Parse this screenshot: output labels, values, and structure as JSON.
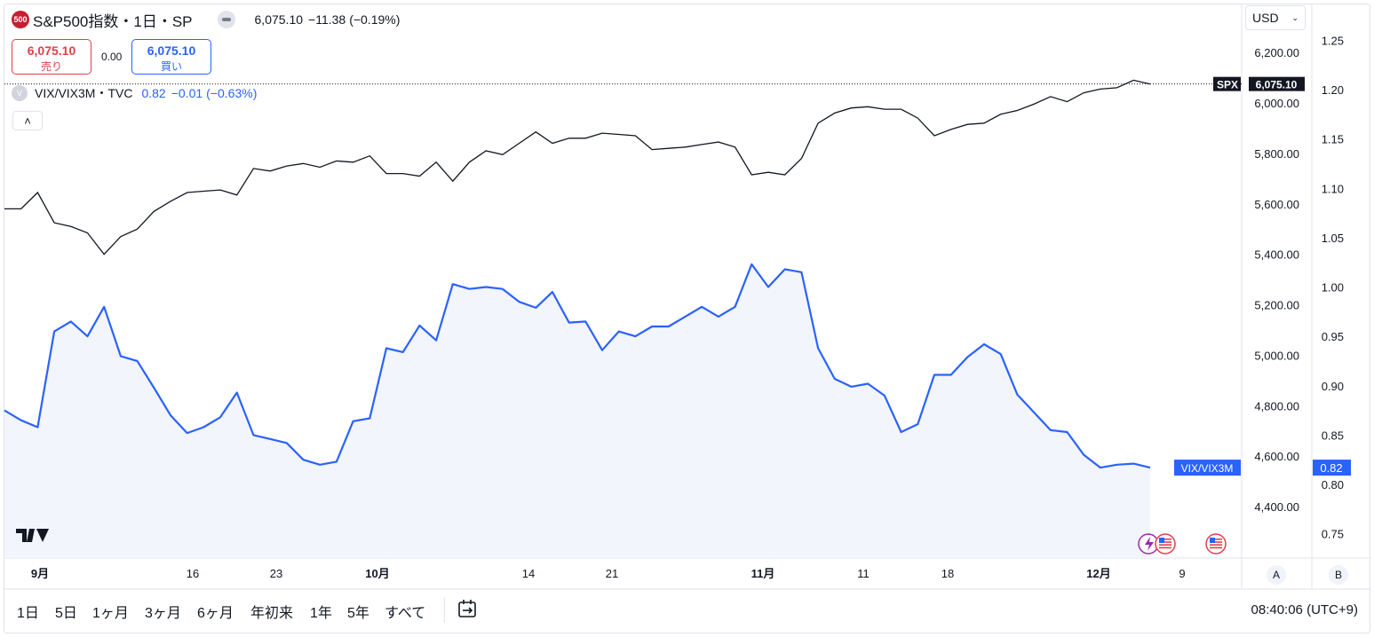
{
  "header": {
    "logo": "500",
    "symbol_title": "S&P500指数・1日・SP",
    "last_price": "6,075.10",
    "change": "−11.38",
    "change_pct": "(−0.19%)"
  },
  "trade": {
    "sell_price": "6,075.10",
    "sell_label": "売り",
    "spread": "0.00",
    "buy_price": "6,075.10",
    "buy_label": "買い"
  },
  "compare_legend": {
    "badge": "V",
    "symbol": "VIX/VIX3M・TVC",
    "value": "0.82",
    "change": "−0.01",
    "change_pct": "(−0.63%)"
  },
  "currency": "USD",
  "bottom": {
    "ranges": [
      "1日",
      "5日",
      "1ヶ月",
      "3ヶ月",
      "6ヶ月",
      "年初来",
      "1年",
      "5年",
      "すべて"
    ],
    "clock": "08:40:06 (UTC+9)"
  },
  "scale_buttons": {
    "left": "A",
    "right": "B"
  },
  "colors": {
    "spx_line": "#131722",
    "vix_line": "#2962ff",
    "vix_fill": "#f3f5fc",
    "sell": "#e03e4a",
    "buy": "#2962ff",
    "logo_bg": "#c62030"
  },
  "chart_data": {
    "type": "line",
    "x_tick_labels": [
      "9月",
      "16",
      "23",
      "10月",
      "14",
      "21",
      "11月",
      "11",
      "18",
      "12月",
      "9"
    ],
    "y_axis_left": {
      "ylim": [
        4200,
        6300
      ],
      "ticks": [
        "6,200.00",
        "6,000.00",
        "5,800.00",
        "5,600.00",
        "5,400.00",
        "5,200.00",
        "5,000.00",
        "4,800.00",
        "4,600.00",
        "4,400.00"
      ]
    },
    "y_axis_right": {
      "ylim": [
        0.72,
        1.27
      ],
      "ticks": [
        "1.25",
        "1.20",
        "1.15",
        "1.10",
        "1.05",
        "1.00",
        "0.95",
        "0.90",
        "0.85",
        "0.80",
        "0.75"
      ]
    },
    "series": [
      {
        "name": "SPX",
        "axis": "left",
        "last_label": "6,075.10",
        "values": [
          5580,
          5580,
          5645,
          5525,
          5510,
          5485,
          5400,
          5470,
          5500,
          5570,
          5610,
          5645,
          5650,
          5655,
          5635,
          5740,
          5730,
          5750,
          5760,
          5745,
          5770,
          5765,
          5790,
          5720,
          5720,
          5710,
          5765,
          5690,
          5765,
          5810,
          5795,
          5840,
          5885,
          5840,
          5860,
          5860,
          5880,
          5875,
          5870,
          5815,
          5820,
          5825,
          5835,
          5845,
          5825,
          5715,
          5725,
          5715,
          5780,
          5920,
          5960,
          5980,
          5985,
          5975,
          5975,
          5940,
          5870,
          5895,
          5915,
          5920,
          5955,
          5970,
          5995,
          6025,
          6005,
          6040,
          6055,
          6060,
          6090,
          6075
        ]
      },
      {
        "name": "VIX/VIX3M",
        "axis": "right",
        "last_label": "0.82",
        "values": [
          0.875,
          0.865,
          0.858,
          0.955,
          0.965,
          0.95,
          0.98,
          0.93,
          0.925,
          0.898,
          0.87,
          0.852,
          0.858,
          0.868,
          0.893,
          0.85,
          0.846,
          0.842,
          0.825,
          0.82,
          0.823,
          0.864,
          0.867,
          0.938,
          0.934,
          0.961,
          0.946,
          1.003,
          0.998,
          1.0,
          0.998,
          0.985,
          0.979,
          0.995,
          0.964,
          0.965,
          0.936,
          0.955,
          0.95,
          0.96,
          0.96,
          0.97,
          0.98,
          0.97,
          0.98,
          1.023,
          1.0,
          1.018,
          1.015,
          0.938,
          0.907,
          0.899,
          0.902,
          0.89,
          0.853,
          0.861,
          0.911,
          0.911,
          0.929,
          0.942,
          0.932,
          0.891,
          0.873,
          0.855,
          0.853,
          0.83,
          0.817,
          0.82,
          0.821,
          0.817
        ]
      }
    ],
    "axis_labels": {
      "spx": "SPX",
      "vix": "VIX/VIX3M"
    },
    "grid": false
  }
}
